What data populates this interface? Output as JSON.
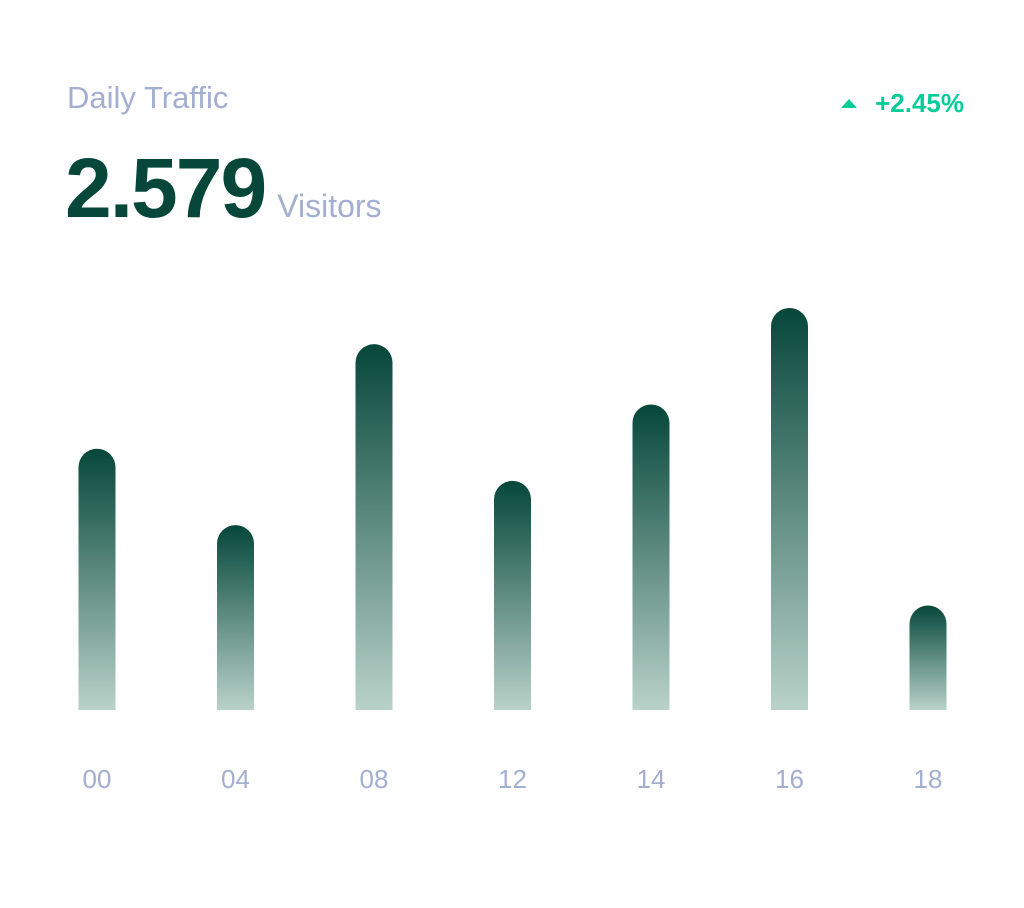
{
  "header": {
    "title": "Daily Traffic",
    "value": "2.579",
    "unit": "Visitors",
    "change": "+2.45%",
    "change_icon": "triangle-up-icon"
  },
  "colors": {
    "bar_top": "#06473A",
    "bar_bottom": "#B9D2C9",
    "label": "#A3AED0",
    "positive": "#05CD99"
  },
  "chart_data": {
    "type": "bar",
    "title": "Daily Traffic",
    "categories": [
      "00",
      "04",
      "08",
      "12",
      "14",
      "16",
      "18"
    ],
    "values": [
      65,
      46,
      91,
      57,
      76,
      100,
      26
    ],
    "xlabel": "",
    "ylabel": "",
    "ylim": [
      0,
      100
    ],
    "grid": false,
    "legend": "none"
  }
}
